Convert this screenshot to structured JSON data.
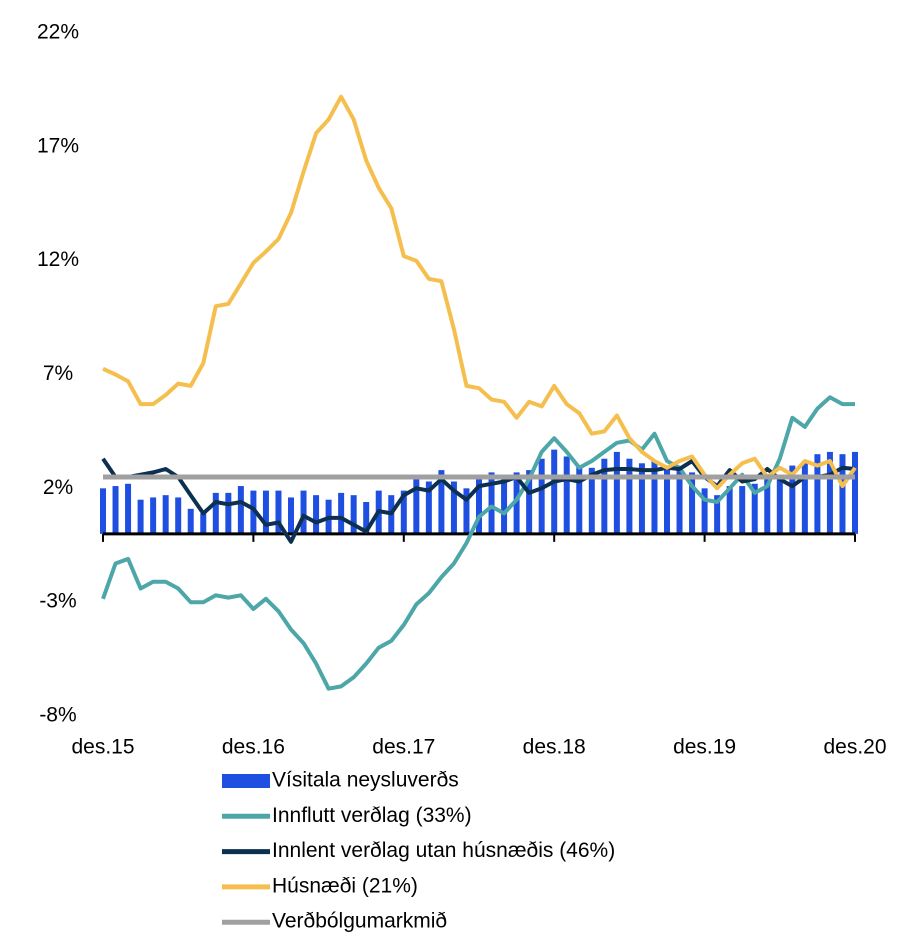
{
  "chart_data": {
    "type": "combo",
    "categories": [
      "des.15",
      null,
      null,
      null,
      null,
      null,
      null,
      null,
      null,
      null,
      null,
      null,
      "des.16",
      null,
      null,
      null,
      null,
      null,
      null,
      null,
      null,
      null,
      null,
      null,
      "des.17",
      null,
      null,
      null,
      null,
      null,
      null,
      null,
      null,
      null,
      null,
      null,
      "des.18",
      null,
      null,
      null,
      null,
      null,
      null,
      null,
      null,
      null,
      null,
      null,
      "des.19",
      null,
      null,
      null,
      null,
      null,
      null,
      null,
      null,
      null,
      null,
      null,
      "des.20"
    ],
    "ylim": [
      -8,
      22
    ],
    "yticks": [
      {
        "value": -8,
        "label": "-8%"
      },
      {
        "value": -3,
        "label": "-3%"
      },
      {
        "value": 2,
        "label": "2%"
      },
      {
        "value": 7,
        "label": "7%"
      },
      {
        "value": 12,
        "label": "12%"
      },
      {
        "value": 17,
        "label": "17%"
      },
      {
        "value": 22,
        "label": "22%"
      }
    ],
    "grid": false,
    "series": [
      {
        "name": "Vísitala neysluverðs",
        "type": "bar",
        "color": "#1f4fe0",
        "values": [
          2.0,
          2.1,
          2.2,
          1.5,
          1.6,
          1.7,
          1.6,
          1.1,
          0.9,
          1.8,
          1.8,
          2.1,
          1.9,
          1.9,
          1.9,
          1.6,
          1.9,
          1.7,
          1.5,
          1.8,
          1.7,
          1.4,
          1.9,
          1.7,
          1.9,
          2.4,
          2.3,
          2.8,
          2.3,
          2.0,
          2.6,
          2.7,
          2.6,
          2.7,
          2.8,
          3.3,
          3.7,
          3.4,
          3.0,
          2.9,
          3.3,
          3.6,
          3.3,
          3.1,
          3.2,
          3.0,
          2.8,
          2.7,
          2.0,
          1.7,
          2.1,
          2.1,
          2.2,
          2.6,
          2.6,
          3.0,
          3.2,
          3.5,
          3.6,
          3.5,
          3.6
        ]
      },
      {
        "name": "Innflutt verðlag (33%)",
        "type": "line",
        "color": "#4da6a8",
        "values": [
          -2.85,
          -1.3,
          -1.1,
          -2.4,
          -2.1,
          -2.1,
          -2.4,
          -3.0,
          -3.0,
          -2.7,
          -2.8,
          -2.7,
          -3.3,
          -2.85,
          -3.4,
          -4.2,
          -4.8,
          -5.7,
          -6.8,
          -6.7,
          -6.3,
          -5.7,
          -5.0,
          -4.7,
          -4.0,
          -3.1,
          -2.6,
          -1.9,
          -1.3,
          -0.4,
          0.75,
          1.2,
          0.9,
          1.5,
          2.4,
          3.6,
          4.2,
          3.6,
          2.9,
          3.2,
          3.6,
          4.0,
          4.1,
          3.7,
          4.4,
          3.2,
          2.9,
          2.1,
          1.5,
          1.4,
          2.0,
          2.6,
          1.8,
          2.1,
          3.3,
          5.1,
          4.7,
          5.5,
          6.0,
          5.7,
          5.7
        ]
      },
      {
        "name": "Innlent verðlag utan húsnæðis (46%)",
        "type": "line",
        "color": "#0d3050",
        "values": [
          3.3,
          2.5,
          2.5,
          2.6,
          2.7,
          2.85,
          2.5,
          1.7,
          0.9,
          1.4,
          1.3,
          1.4,
          1.1,
          0.4,
          0.5,
          -0.35,
          0.8,
          0.5,
          0.7,
          0.7,
          0.4,
          0.1,
          1.0,
          0.9,
          1.7,
          2.0,
          1.9,
          2.4,
          1.9,
          1.5,
          2.1,
          2.2,
          2.3,
          2.5,
          1.8,
          2.0,
          2.3,
          2.4,
          2.3,
          2.6,
          2.8,
          2.85,
          2.85,
          2.8,
          2.8,
          2.9,
          2.85,
          3.2,
          2.5,
          2.1,
          2.8,
          2.3,
          2.4,
          2.85,
          2.4,
          2.1,
          2.5,
          2.5,
          2.6,
          2.9,
          2.85
        ]
      },
      {
        "name": "Húsnæði (21%)",
        "type": "line",
        "color": "#f5bf4f",
        "values": [
          7.25,
          7.0,
          6.7,
          5.7,
          5.7,
          6.1,
          6.6,
          6.5,
          7.5,
          10.0,
          10.1,
          11.0,
          11.9,
          12.4,
          12.95,
          14.1,
          15.9,
          17.6,
          18.2,
          19.2,
          18.2,
          16.4,
          15.2,
          14.3,
          12.2,
          12.0,
          11.2,
          11.1,
          9.0,
          6.5,
          6.4,
          5.9,
          5.8,
          5.1,
          5.8,
          5.6,
          6.5,
          5.7,
          5.3,
          4.4,
          4.5,
          5.2,
          4.2,
          3.6,
          3.2,
          2.9,
          3.2,
          3.4,
          2.6,
          2.0,
          2.6,
          3.1,
          3.3,
          2.5,
          2.9,
          2.6,
          3.2,
          3.0,
          3.2,
          2.1,
          2.9
        ]
      },
      {
        "name": "Verðbólgumarkmið",
        "type": "line",
        "color": "#a0a0a0",
        "values": [
          2.5,
          2.5,
          2.5,
          2.5,
          2.5,
          2.5,
          2.5,
          2.5,
          2.5,
          2.5,
          2.5,
          2.5,
          2.5,
          2.5,
          2.5,
          2.5,
          2.5,
          2.5,
          2.5,
          2.5,
          2.5,
          2.5,
          2.5,
          2.5,
          2.5,
          2.5,
          2.5,
          2.5,
          2.5,
          2.5,
          2.5,
          2.5,
          2.5,
          2.5,
          2.5,
          2.5,
          2.5,
          2.5,
          2.5,
          2.5,
          2.5,
          2.5,
          2.5,
          2.5,
          2.5,
          2.5,
          2.5,
          2.5,
          2.5,
          2.5,
          2.5,
          2.5,
          2.5,
          2.5,
          2.5,
          2.5,
          2.5,
          2.5,
          2.5,
          2.5,
          2.5
        ]
      }
    ]
  }
}
